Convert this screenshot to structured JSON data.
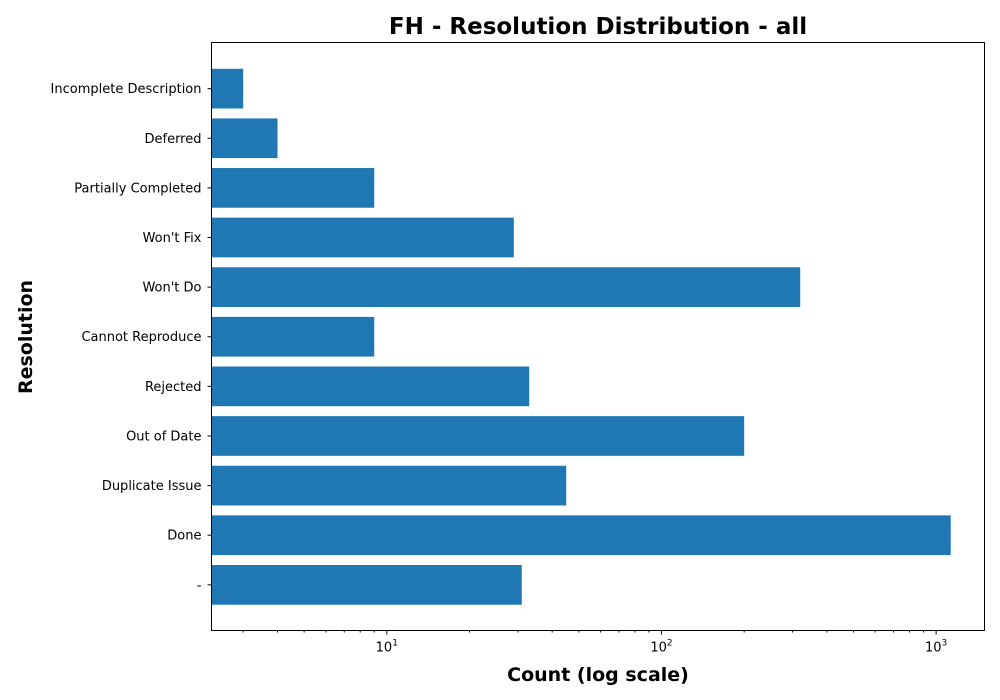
{
  "chart_data": {
    "type": "bar",
    "orientation": "horizontal",
    "title": "FH - Resolution Distribution - all",
    "xlabel": "Count (log scale)",
    "ylabel": "Resolution",
    "xscale": "log",
    "xlim": [
      2.3,
      1500
    ],
    "x_ticks": [
      {
        "value": 10,
        "base": "10",
        "exp": "1"
      },
      {
        "value": 100,
        "base": "10",
        "exp": "2"
      },
      {
        "value": 1000,
        "base": "10",
        "exp": "3"
      }
    ],
    "categories": [
      "-",
      "Done",
      "Duplicate Issue",
      "Out of Date",
      "Rejected",
      "Cannot Reproduce",
      "Won't Do",
      "Won't Fix",
      "Partially Completed",
      "Deferred",
      "Incomplete Description"
    ],
    "values": [
      31,
      1130,
      45,
      200,
      33,
      9,
      320,
      29,
      9,
      4,
      3
    ],
    "color": "#1f77b4",
    "grid": false,
    "legend": "none"
  }
}
